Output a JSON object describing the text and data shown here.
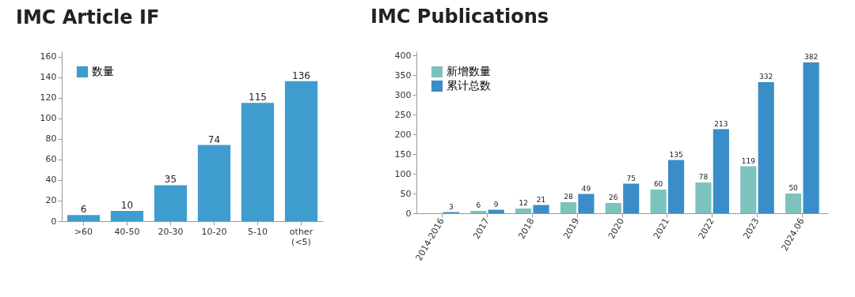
{
  "chart_data": [
    {
      "type": "bar",
      "title": "IMC Article IF",
      "categories": [
        ">60",
        "40-50",
        "20-30",
        "10-20",
        "5-10",
        "other\n(<5)"
      ],
      "series": [
        {
          "name": "数量",
          "color": "#3f9ccf",
          "values": [
            6,
            10,
            35,
            74,
            115,
            136
          ]
        }
      ],
      "ylim": [
        0,
        165
      ],
      "yticks": [
        0,
        20,
        40,
        60,
        80,
        100,
        120,
        140,
        160
      ],
      "data_labels": true,
      "legend": "top left"
    },
    {
      "type": "bar",
      "title": "IMC Publications",
      "categories": [
        "2014-2016",
        "2017",
        "2018",
        "2019",
        "2020",
        "2021",
        "2022",
        "2023",
        "2024.06"
      ],
      "series": [
        {
          "name": "新增数量",
          "color": "#7cc3bd",
          "values": [
            null,
            6,
            12,
            28,
            26,
            60,
            78,
            119,
            50
          ]
        },
        {
          "name": "累计总数",
          "color": "#3a8dc8",
          "values": [
            3,
            9,
            21,
            49,
            75,
            135,
            213,
            332,
            382
          ]
        }
      ],
      "ylim": [
        0,
        410
      ],
      "yticks": [
        0,
        50,
        100,
        150,
        200,
        250,
        300,
        350,
        400
      ],
      "data_labels": true,
      "legend": "top left"
    }
  ]
}
